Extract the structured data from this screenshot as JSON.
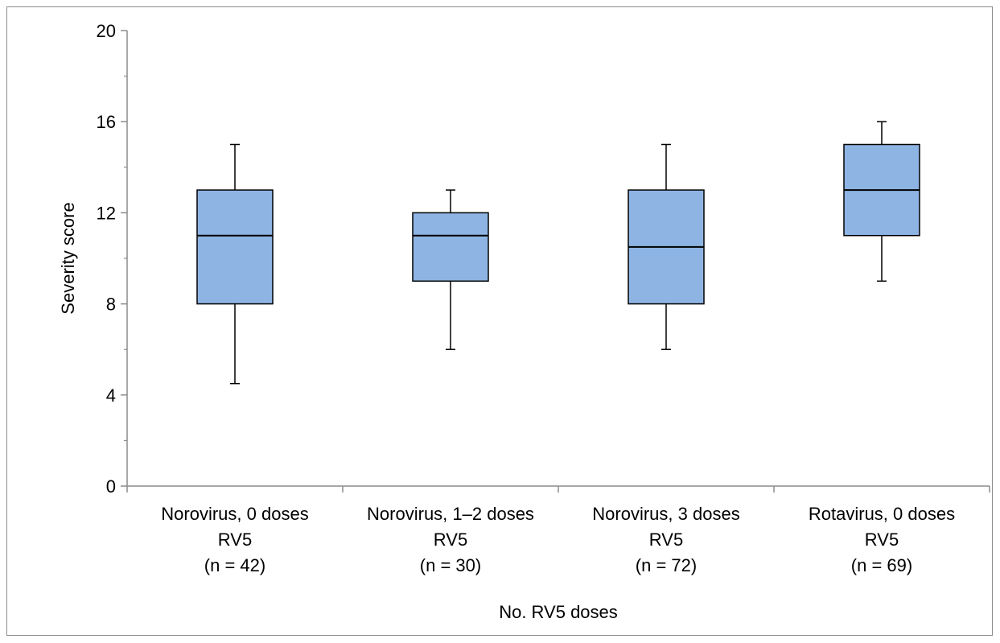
{
  "chart_data": {
    "type": "box",
    "title": "",
    "xlabel": "No. RV5 doses",
    "ylabel": "Severity score",
    "ylim": [
      0,
      20
    ],
    "yticks": [
      0,
      4,
      8,
      12,
      16,
      20
    ],
    "grid": false,
    "legend": "none",
    "box_color": "#8EB4E3",
    "categories": [
      {
        "lines": [
          "Norovirus, 0 doses",
          "RV5",
          "(n = 42)"
        ],
        "whisker_low": 4.5,
        "q1": 8,
        "median": 11,
        "q3": 13,
        "whisker_high": 15
      },
      {
        "lines": [
          "Norovirus, 1–2 doses",
          "RV5",
          "(n = 30)"
        ],
        "whisker_low": 6,
        "q1": 9,
        "median": 11,
        "q3": 12,
        "whisker_high": 13
      },
      {
        "lines": [
          "Norovirus, 3 doses",
          "RV5",
          "(n = 72)"
        ],
        "whisker_low": 6,
        "q1": 8,
        "median": 10.5,
        "q3": 13,
        "whisker_high": 15
      },
      {
        "lines": [
          "Rotavirus, 0 doses",
          "RV5",
          "(n = 69)"
        ],
        "whisker_low": 9,
        "q1": 11,
        "median": 13,
        "q3": 15,
        "whisker_high": 16
      }
    ]
  }
}
